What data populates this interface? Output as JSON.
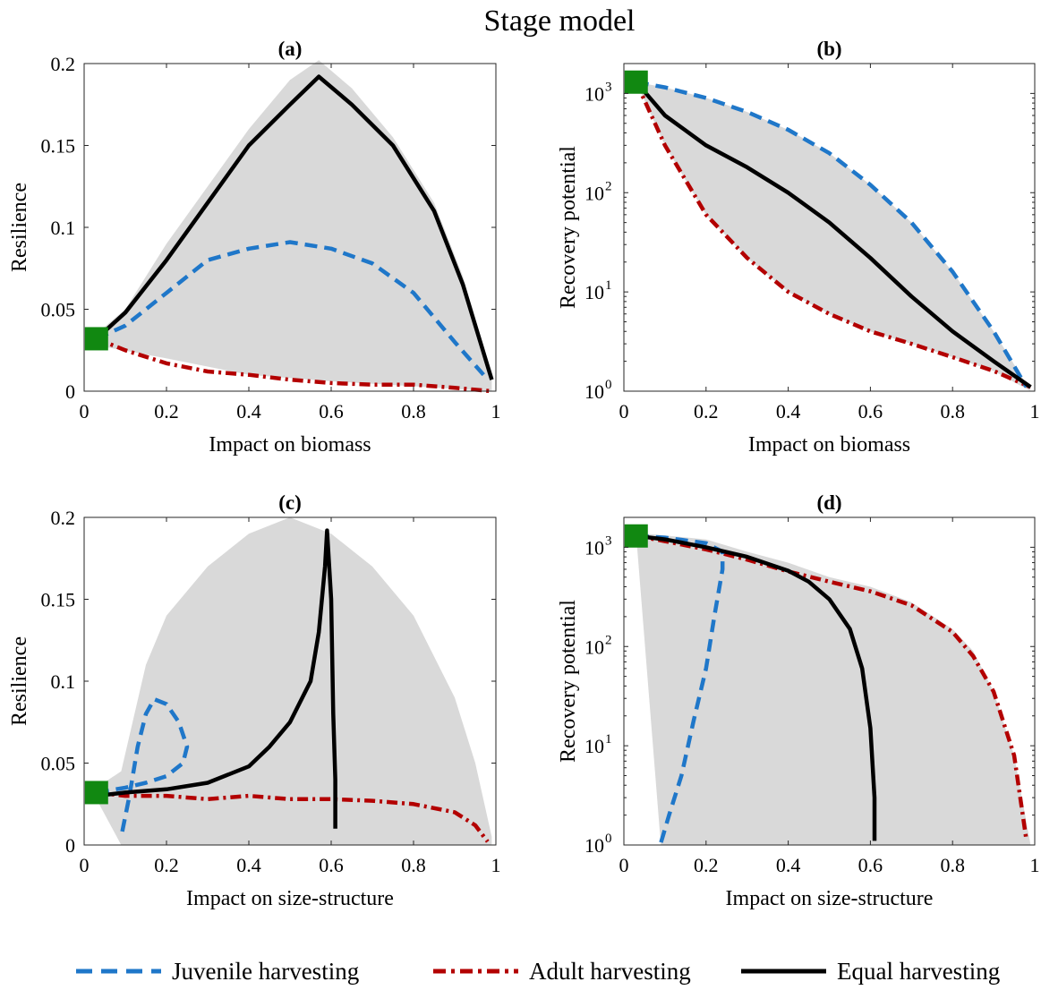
{
  "figure": {
    "title": "Stage model",
    "legend": [
      {
        "label": "Juvenile harvesting",
        "color": "#1f77c9",
        "style": "dashed"
      },
      {
        "label": "Adult harvesting",
        "color": "#b30000",
        "style": "dashdot"
      },
      {
        "label": "Equal harvesting",
        "color": "#000000",
        "style": "solid"
      }
    ],
    "envelope_color": "#d9d9d9",
    "marker_color": "#118811"
  },
  "chart_data": [
    {
      "panel": "(a)",
      "type": "line",
      "xlabel": "Impact on biomass",
      "ylabel": "Resilience",
      "xlim": [
        0,
        1
      ],
      "ylim": [
        0,
        0.2
      ],
      "yscale": "linear",
      "xticks": [
        0,
        0.2,
        0.4,
        0.6,
        0.8,
        1
      ],
      "xticklabels": [
        "0",
        "0.2",
        "0.4",
        "0.6",
        "0.8",
        "1"
      ],
      "yticks": [
        0,
        0.05,
        0.1,
        0.15,
        0.2
      ],
      "yticklabels": [
        "0",
        "0.05",
        "0.1",
        "0.15",
        "0.2"
      ],
      "start_marker": [
        0.03,
        0.032
      ],
      "envelope_upper": [
        [
          0.03,
          0.035
        ],
        [
          0.1,
          0.05
        ],
        [
          0.2,
          0.09
        ],
        [
          0.3,
          0.125
        ],
        [
          0.4,
          0.16
        ],
        [
          0.5,
          0.19
        ],
        [
          0.57,
          0.202
        ],
        [
          0.65,
          0.185
        ],
        [
          0.75,
          0.155
        ],
        [
          0.85,
          0.115
        ],
        [
          0.92,
          0.07
        ],
        [
          0.99,
          0.01
        ]
      ],
      "envelope_lower": [
        [
          0.03,
          0.028
        ],
        [
          0.2,
          0.02
        ],
        [
          0.4,
          0.01
        ],
        [
          0.6,
          0.006
        ],
        [
          0.8,
          0.003
        ],
        [
          0.99,
          0.0
        ]
      ],
      "series": [
        {
          "name": "Juvenile harvesting",
          "points": [
            [
              0.03,
              0.032
            ],
            [
              0.1,
              0.04
            ],
            [
              0.2,
              0.06
            ],
            [
              0.3,
              0.08
            ],
            [
              0.4,
              0.087
            ],
            [
              0.5,
              0.091
            ],
            [
              0.6,
              0.087
            ],
            [
              0.7,
              0.078
            ],
            [
              0.8,
              0.06
            ],
            [
              0.9,
              0.03
            ],
            [
              0.97,
              0.01
            ]
          ]
        },
        {
          "name": "Adult harvesting",
          "points": [
            [
              0.03,
              0.032
            ],
            [
              0.1,
              0.025
            ],
            [
              0.2,
              0.017
            ],
            [
              0.3,
              0.012
            ],
            [
              0.4,
              0.01
            ],
            [
              0.5,
              0.007
            ],
            [
              0.6,
              0.005
            ],
            [
              0.7,
              0.004
            ],
            [
              0.8,
              0.004
            ],
            [
              0.9,
              0.002
            ],
            [
              0.99,
              0.0
            ]
          ]
        },
        {
          "name": "Equal harvesting",
          "points": [
            [
              0.03,
              0.032
            ],
            [
              0.1,
              0.048
            ],
            [
              0.2,
              0.08
            ],
            [
              0.3,
              0.115
            ],
            [
              0.4,
              0.15
            ],
            [
              0.5,
              0.175
            ],
            [
              0.57,
              0.192
            ],
            [
              0.65,
              0.175
            ],
            [
              0.75,
              0.15
            ],
            [
              0.85,
              0.11
            ],
            [
              0.92,
              0.065
            ],
            [
              0.99,
              0.007
            ]
          ]
        }
      ]
    },
    {
      "panel": "(b)",
      "type": "line",
      "xlabel": "Impact on biomass",
      "ylabel": "Recovery potential",
      "xlim": [
        0,
        1
      ],
      "ylim": [
        1,
        2000
      ],
      "yscale": "log",
      "xticks": [
        0,
        0.2,
        0.4,
        0.6,
        0.8,
        1
      ],
      "xticklabels": [
        "0",
        "0.2",
        "0.4",
        "0.6",
        "0.8",
        "1"
      ],
      "yticks": [
        1,
        10,
        100,
        1000
      ],
      "yticklabels": [
        "10",
        "10",
        "10",
        "10"
      ],
      "yexponents": [
        "0",
        "1",
        "2",
        "3"
      ],
      "start_marker": [
        0.03,
        1300
      ],
      "envelope_upper": [
        [
          0.03,
          1300
        ],
        [
          0.1,
          1150
        ],
        [
          0.2,
          900
        ],
        [
          0.3,
          650
        ],
        [
          0.4,
          430
        ],
        [
          0.5,
          250
        ],
        [
          0.6,
          120
        ],
        [
          0.7,
          50
        ],
        [
          0.8,
          16
        ],
        [
          0.9,
          4
        ],
        [
          0.99,
          1.0
        ]
      ],
      "envelope_lower": [
        [
          0.03,
          1300
        ],
        [
          0.1,
          300
        ],
        [
          0.2,
          60
        ],
        [
          0.3,
          22
        ],
        [
          0.4,
          10
        ],
        [
          0.5,
          6
        ],
        [
          0.6,
          4
        ],
        [
          0.7,
          3
        ],
        [
          0.8,
          2.2
        ],
        [
          0.9,
          1.6
        ],
        [
          0.99,
          1.0
        ]
      ],
      "series": [
        {
          "name": "Juvenile harvesting",
          "points": [
            [
              0.03,
              1300
            ],
            [
              0.1,
              1150
            ],
            [
              0.2,
              900
            ],
            [
              0.3,
              650
            ],
            [
              0.4,
              430
            ],
            [
              0.5,
              250
            ],
            [
              0.6,
              120
            ],
            [
              0.7,
              50
            ],
            [
              0.8,
              16
            ],
            [
              0.9,
              4
            ],
            [
              0.98,
              1.1
            ]
          ]
        },
        {
          "name": "Adult harvesting",
          "points": [
            [
              0.03,
              1300
            ],
            [
              0.1,
              300
            ],
            [
              0.2,
              60
            ],
            [
              0.3,
              22
            ],
            [
              0.4,
              10
            ],
            [
              0.5,
              6
            ],
            [
              0.6,
              4
            ],
            [
              0.7,
              3
            ],
            [
              0.8,
              2.2
            ],
            [
              0.9,
              1.6
            ],
            [
              0.99,
              1.1
            ]
          ]
        },
        {
          "name": "Equal harvesting",
          "points": [
            [
              0.03,
              1300
            ],
            [
              0.1,
              600
            ],
            [
              0.2,
              300
            ],
            [
              0.3,
              180
            ],
            [
              0.4,
              100
            ],
            [
              0.5,
              50
            ],
            [
              0.6,
              22
            ],
            [
              0.7,
              9
            ],
            [
              0.8,
              4
            ],
            [
              0.9,
              2
            ],
            [
              0.99,
              1.1
            ]
          ]
        }
      ]
    },
    {
      "panel": "(c)",
      "type": "line",
      "xlabel": "Impact on size-structure",
      "ylabel": "Resilience",
      "xlim": [
        0,
        1
      ],
      "ylim": [
        0,
        0.2
      ],
      "yscale": "linear",
      "xticks": [
        0,
        0.2,
        0.4,
        0.6,
        0.8,
        1
      ],
      "xticklabels": [
        "0",
        "0.2",
        "0.4",
        "0.6",
        "0.8",
        "1"
      ],
      "yticks": [
        0,
        0.05,
        0.1,
        0.15,
        0.2
      ],
      "yticklabels": [
        "0",
        "0.05",
        "0.1",
        "0.15",
        "0.2"
      ],
      "start_marker": [
        0.03,
        0.032
      ],
      "envelope_upper": [
        [
          0.03,
          0.035
        ],
        [
          0.09,
          0.045
        ],
        [
          0.15,
          0.11
        ],
        [
          0.2,
          0.14
        ],
        [
          0.3,
          0.17
        ],
        [
          0.4,
          0.19
        ],
        [
          0.5,
          0.2
        ],
        [
          0.6,
          0.19
        ],
        [
          0.7,
          0.17
        ],
        [
          0.8,
          0.14
        ],
        [
          0.9,
          0.09
        ],
        [
          0.95,
          0.05
        ],
        [
          0.99,
          0.005
        ]
      ],
      "envelope_lower": [
        [
          0.03,
          0.028
        ],
        [
          0.09,
          0.0
        ],
        [
          0.99,
          0.0
        ]
      ],
      "series": [
        {
          "name": "Juvenile harvesting",
          "points": [
            [
              0.03,
              0.032
            ],
            [
              0.1,
              0.035
            ],
            [
              0.15,
              0.038
            ],
            [
              0.2,
              0.042
            ],
            [
              0.24,
              0.05
            ],
            [
              0.25,
              0.06
            ],
            [
              0.23,
              0.075
            ],
            [
              0.2,
              0.086
            ],
            [
              0.17,
              0.089
            ],
            [
              0.15,
              0.08
            ],
            [
              0.13,
              0.06
            ],
            [
              0.11,
              0.03
            ],
            [
              0.09,
              0.005
            ]
          ]
        },
        {
          "name": "Adult harvesting",
          "points": [
            [
              0.03,
              0.032
            ],
            [
              0.1,
              0.03
            ],
            [
              0.2,
              0.03
            ],
            [
              0.3,
              0.028
            ],
            [
              0.4,
              0.03
            ],
            [
              0.5,
              0.028
            ],
            [
              0.6,
              0.028
            ],
            [
              0.7,
              0.027
            ],
            [
              0.8,
              0.025
            ],
            [
              0.9,
              0.02
            ],
            [
              0.95,
              0.012
            ],
            [
              0.98,
              0.002
            ]
          ]
        },
        {
          "name": "Equal harvesting",
          "points": [
            [
              0.03,
              0.03
            ],
            [
              0.1,
              0.032
            ],
            [
              0.2,
              0.034
            ],
            [
              0.3,
              0.038
            ],
            [
              0.4,
              0.048
            ],
            [
              0.45,
              0.06
            ],
            [
              0.5,
              0.075
            ],
            [
              0.55,
              0.1
            ],
            [
              0.57,
              0.13
            ],
            [
              0.585,
              0.17
            ],
            [
              0.59,
              0.192
            ],
            [
              0.6,
              0.15
            ],
            [
              0.605,
              0.08
            ],
            [
              0.61,
              0.04
            ],
            [
              0.61,
              0.01
            ]
          ]
        }
      ]
    },
    {
      "panel": "(d)",
      "type": "line",
      "xlabel": "Impact on size-structure",
      "ylabel": "Recovery potential",
      "xlim": [
        0,
        1
      ],
      "ylim": [
        1,
        2000
      ],
      "yscale": "log",
      "xticks": [
        0,
        0.2,
        0.4,
        0.6,
        0.8,
        1
      ],
      "xticklabels": [
        "0",
        "0.2",
        "0.4",
        "0.6",
        "0.8",
        "1"
      ],
      "yticks": [
        1,
        10,
        100,
        1000
      ],
      "yticklabels": [
        "10",
        "10",
        "10",
        "10"
      ],
      "yexponents": [
        "0",
        "1",
        "2",
        "3"
      ],
      "start_marker": [
        0.03,
        1300
      ],
      "envelope_upper": [
        [
          0.03,
          1400
        ],
        [
          0.2,
          1200
        ],
        [
          0.3,
          900
        ],
        [
          0.4,
          700
        ],
        [
          0.5,
          500
        ],
        [
          0.6,
          400
        ],
        [
          0.7,
          280
        ],
        [
          0.8,
          150
        ],
        [
          0.85,
          90
        ],
        [
          0.9,
          35
        ],
        [
          0.95,
          8
        ],
        [
          0.99,
          1.0
        ]
      ],
      "envelope_lower": [
        [
          0.03,
          1300
        ],
        [
          0.09,
          1.0
        ],
        [
          0.99,
          1.0
        ]
      ],
      "series": [
        {
          "name": "Juvenile harvesting",
          "points": [
            [
              0.03,
              1300
            ],
            [
              0.1,
              1250
            ],
            [
              0.2,
              1100
            ],
            [
              0.24,
              900
            ],
            [
              0.24,
              600
            ],
            [
              0.22,
              200
            ],
            [
              0.2,
              60
            ],
            [
              0.17,
              18
            ],
            [
              0.14,
              5
            ],
            [
              0.11,
              2
            ],
            [
              0.09,
              1.05
            ]
          ]
        },
        {
          "name": "Adult harvesting",
          "points": [
            [
              0.03,
              1300
            ],
            [
              0.1,
              1150
            ],
            [
              0.2,
              950
            ],
            [
              0.3,
              750
            ],
            [
              0.4,
              570
            ],
            [
              0.5,
              450
            ],
            [
              0.6,
              360
            ],
            [
              0.7,
              260
            ],
            [
              0.8,
              140
            ],
            [
              0.85,
              80
            ],
            [
              0.9,
              35
            ],
            [
              0.95,
              8
            ],
            [
              0.98,
              1.1
            ]
          ]
        },
        {
          "name": "Equal harvesting",
          "points": [
            [
              0.03,
              1300
            ],
            [
              0.1,
              1200
            ],
            [
              0.2,
              1000
            ],
            [
              0.3,
              800
            ],
            [
              0.4,
              580
            ],
            [
              0.45,
              450
            ],
            [
              0.5,
              300
            ],
            [
              0.55,
              150
            ],
            [
              0.58,
              60
            ],
            [
              0.6,
              15
            ],
            [
              0.61,
              3
            ],
            [
              0.61,
              1.1
            ]
          ]
        }
      ]
    }
  ]
}
